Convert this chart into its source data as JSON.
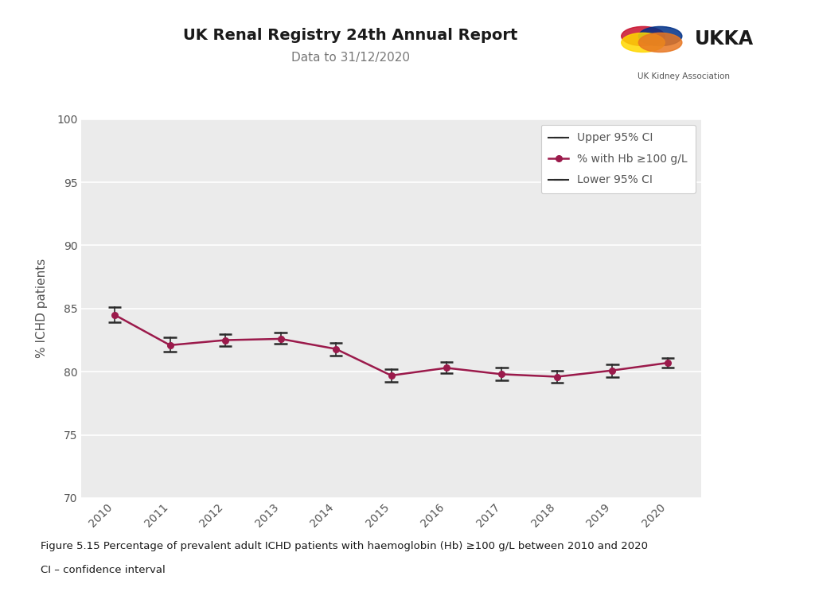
{
  "years": [
    2010,
    2011,
    2012,
    2013,
    2014,
    2015,
    2016,
    2017,
    2018,
    2019,
    2020
  ],
  "main_values": [
    84.5,
    82.1,
    82.5,
    82.6,
    81.8,
    79.7,
    80.3,
    79.8,
    79.6,
    80.1,
    80.7
  ],
  "upper_ci": [
    85.1,
    82.7,
    83.0,
    83.1,
    82.3,
    80.2,
    80.8,
    80.3,
    80.1,
    80.6,
    81.1
  ],
  "lower_ci": [
    83.9,
    81.6,
    82.0,
    82.2,
    81.3,
    79.2,
    79.9,
    79.3,
    79.1,
    79.6,
    80.3
  ],
  "main_color": "#9b1a4b",
  "ci_color": "#2b2b2b",
  "ylabel": "% ICHD patients",
  "ylim": [
    70,
    100
  ],
  "yticks": [
    70,
    75,
    80,
    85,
    90,
    95,
    100
  ],
  "title": "UK Renal Registry 24th Annual Report",
  "subtitle": "Data to 31/12/2020",
  "legend_labels": [
    "Upper 95% CI",
    "% with Hb ≥100 g/L",
    "Lower 95% CI"
  ],
  "caption_line1": "Figure 5.15 Percentage of prevalent adult ICHD patients with haemoglobin (Hb) ≥100 g/L between 2010 and 2020",
  "caption_line2": "CI – confidence interval",
  "bg_color": "#ebebeb",
  "fig_bg_color": "#ffffff"
}
